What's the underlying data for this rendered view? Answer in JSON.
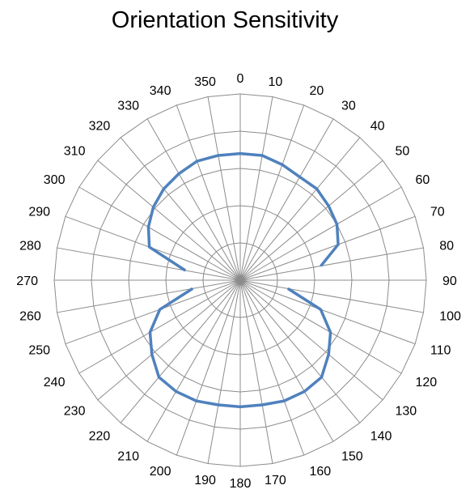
{
  "chart_data": {
    "type": "radar",
    "title": "Orientation Sensitivity",
    "angle_labels": [
      "0",
      "10",
      "20",
      "30",
      "40",
      "50",
      "60",
      "70",
      "80",
      "90",
      "100",
      "110",
      "120",
      "130",
      "140",
      "150",
      "160",
      "170",
      "180",
      "190",
      "200",
      "210",
      "220",
      "230",
      "240",
      "250",
      "260",
      "270",
      "280",
      "290",
      "300",
      "310",
      "320",
      "330",
      "340",
      "350"
    ],
    "radial_range": [
      0,
      5
    ],
    "radial_rings": 5,
    "grid": true,
    "series": [
      {
        "color": "#4f81bd",
        "values": [
          3.4,
          3.4,
          3.3,
          3.2,
          3.2,
          3.1,
          3.0,
          2.8,
          2.2,
          null,
          1.3,
          2.3,
          2.8,
          3.1,
          3.4,
          3.45,
          3.45,
          3.4,
          3.4,
          3.4,
          3.45,
          3.45,
          3.4,
          3.1,
          2.8,
          2.3,
          1.3,
          null,
          1.5,
          2.6,
          2.85,
          3.05,
          3.2,
          3.3,
          3.4,
          3.4
        ]
      }
    ]
  }
}
